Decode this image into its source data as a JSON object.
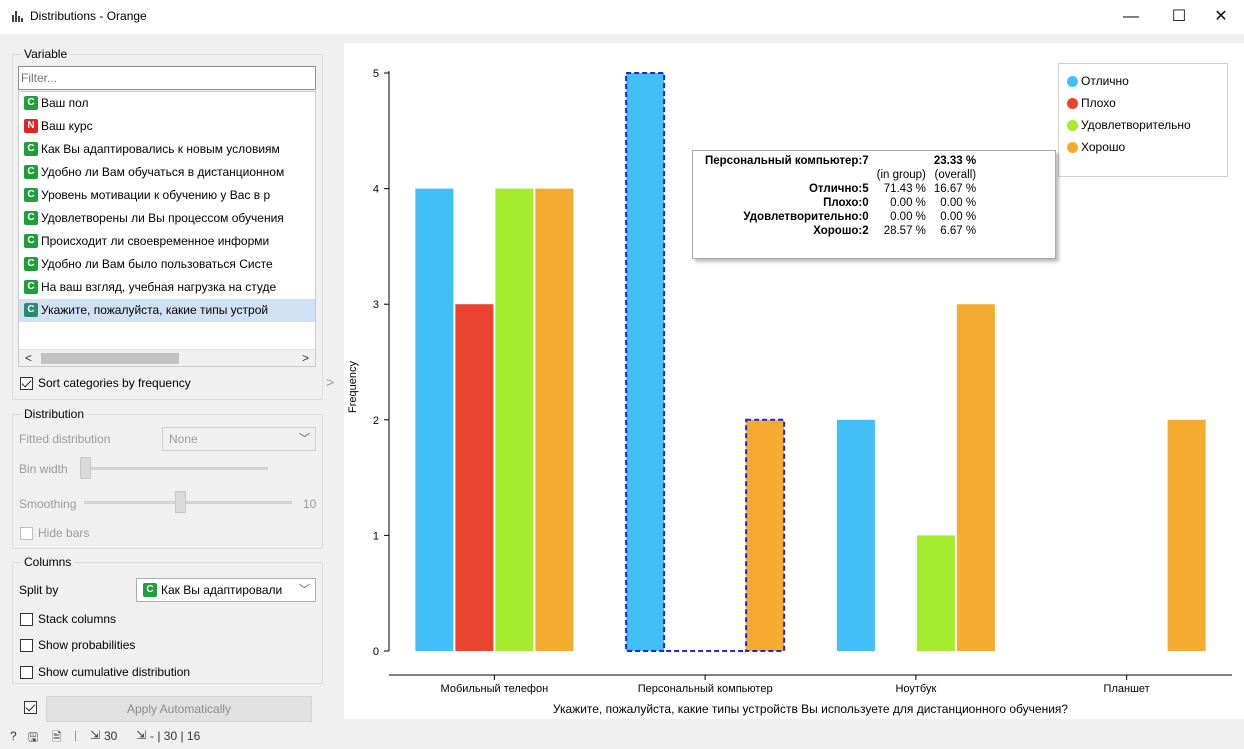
{
  "window": {
    "title": "Distributions - Orange",
    "minimize_glyph": "—",
    "maximize_glyph": "☐",
    "close_glyph": "✕"
  },
  "variable_box": {
    "title": "Variable",
    "filter_placeholder": "Filter...",
    "items": [
      {
        "badge": "C",
        "badge_color": "#1f9e3a",
        "label": "Ваш пол",
        "selected": false
      },
      {
        "badge": "N",
        "badge_color": "#e02420",
        "label": "Ваш курс",
        "selected": false
      },
      {
        "badge": "C",
        "badge_color": "#1f9e3a",
        "label": "Как Вы адаптировались к новым условиям",
        "selected": false
      },
      {
        "badge": "C",
        "badge_color": "#1f9e3a",
        "label": "Удобно ли Вам обучаться в дистанционном",
        "selected": false
      },
      {
        "badge": "C",
        "badge_color": "#1f9e3a",
        "label": "Уровень мотивации к обучению у Вас в р",
        "selected": false
      },
      {
        "badge": "C",
        "badge_color": "#1f9e3a",
        "label": "Удовлетворены ли Вы процессом обучения",
        "selected": false
      },
      {
        "badge": "C",
        "badge_color": "#1f9e3a",
        "label": "Происходит ли своевременное информи",
        "selected": false
      },
      {
        "badge": "C",
        "badge_color": "#1f9e3a",
        "label": "Удобно ли Вам было пользоваться Систе",
        "selected": false
      },
      {
        "badge": "C",
        "badge_color": "#1f9e3a",
        "label": "На ваш взгляд, учебная нагрузка на студе",
        "selected": false
      },
      {
        "badge": "C",
        "badge_color": "#2a8a6e",
        "label": "Укажите, пожалуйста, какие типы устрой",
        "selected": true
      }
    ],
    "sort_label": "Sort categories by frequency",
    "sort_checked": true
  },
  "distribution_box": {
    "title": "Distribution",
    "fitted_label": "Fitted distribution",
    "fitted_value": "None",
    "bin_width_label": "Bin width",
    "bin_width_level": 0,
    "smoothing_label": "Smoothing",
    "smoothing_value": "10",
    "smoothing_level": 0.5,
    "hide_bars_label": "Hide bars"
  },
  "columns_box": {
    "title": "Columns",
    "split_by_label": "Split by",
    "split_by_value": "Как Вы адаптировали",
    "split_by_badge": "C",
    "stack_label": "Stack columns",
    "prob_label": "Show probabilities",
    "cumulative_label": "Show cumulative distribution"
  },
  "apply": {
    "label": "Apply Automatically",
    "checked": true
  },
  "statusbar": {
    "help": "?",
    "save1": "🖫",
    "save2": "🖹",
    "in_count": "30",
    "out_count": "- | 30 | 16"
  },
  "chart_data": {
    "type": "bar",
    "xlabel": "Укажите, пожалуйста, какие типы устройств Вы используете для дистанционного обучения?",
    "ylabel": "Frequency",
    "ylim": [
      0,
      5
    ],
    "yticks": [
      0,
      1,
      2,
      3,
      4,
      5
    ],
    "categories": [
      "Мобильный телефон",
      "Персональный компьютер",
      "Ноутбук",
      "Планшет"
    ],
    "series": [
      {
        "name": "Отлично",
        "color": "#43bff8",
        "values": [
          4,
          5,
          2,
          0
        ]
      },
      {
        "name": "Плохо",
        "color": "#ea4330",
        "values": [
          3,
          0,
          0,
          0
        ]
      },
      {
        "name": "Удовлетворительно",
        "color": "#a5ec2f",
        "values": [
          4,
          0,
          1,
          0
        ]
      },
      {
        "name": "Хорошо",
        "color": "#f5ab30",
        "values": [
          4,
          2,
          3,
          2
        ]
      }
    ],
    "selected_category": "Персональный компьютер",
    "legend_position": "top-right",
    "tooltip": {
      "header_label": "Персональный компьютер:7",
      "header_value": "23.33 %",
      "col1": "(in group)",
      "col2": "(overall)",
      "rows": [
        {
          "label": "Отлично:5",
          "in_group": "71.43 %",
          "overall": "16.67 %"
        },
        {
          "label": "Плохо:0",
          "in_group": "0.00 %",
          "overall": "0.00 %"
        },
        {
          "label": "Удовлетворительно:0",
          "in_group": "0.00 %",
          "overall": "0.00 %"
        },
        {
          "label": "Хорошо:2",
          "in_group": "28.57 %",
          "overall": "6.67 %"
        }
      ]
    }
  }
}
